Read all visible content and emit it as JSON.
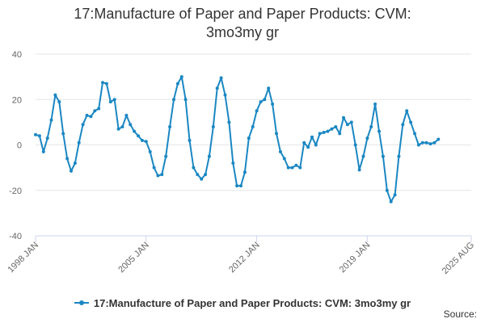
{
  "title_line1": "17:Manufacture of Paper and Paper Products: CVM:",
  "title_line2": "3mo3my gr",
  "source_label": "Source:",
  "colors": {
    "series": "#1a87c2",
    "grid": "#e6e6e6",
    "axis": "#ccd6eb",
    "text": "#666666"
  },
  "chart_data": {
    "type": "line",
    "title": "17:Manufacture of Paper and Paper Products: CVM: 3mo3my gr",
    "xlabel": "",
    "ylabel": "",
    "ylim": [
      -40,
      40
    ],
    "yticks": [
      -40,
      -20,
      0,
      20,
      40
    ],
    "xlim": [
      "1998-01",
      "2025-08"
    ],
    "xticks": [
      {
        "label": "1998 JAN",
        "date": "1998-01"
      },
      {
        "label": "2005 JAN",
        "date": "2005-01"
      },
      {
        "label": "2012 JAN",
        "date": "2012-01"
      },
      {
        "label": "2019 JAN",
        "date": "2019-01"
      },
      {
        "label": "2025 AUG",
        "date": "2025-08"
      }
    ],
    "grid": true,
    "legend": "bottom-center",
    "series": [
      {
        "name": "17:Manufacture of Paper and Paper Products: CVM: 3mo3my gr",
        "points": [
          [
            "1998-01",
            4.5
          ],
          [
            "1998-04",
            4.0
          ],
          [
            "1998-07",
            -3.0
          ],
          [
            "1998-10",
            3.0
          ],
          [
            "1999-01",
            11.0
          ],
          [
            "1999-04",
            22.0
          ],
          [
            "1999-07",
            19.0
          ],
          [
            "1999-10",
            5.0
          ],
          [
            "2000-01",
            -6.0
          ],
          [
            "2000-04",
            -11.5
          ],
          [
            "2000-07",
            -8.0
          ],
          [
            "2000-10",
            1.0
          ],
          [
            "2001-01",
            9.0
          ],
          [
            "2001-04",
            13.0
          ],
          [
            "2001-07",
            12.5
          ],
          [
            "2001-10",
            15.0
          ],
          [
            "2002-01",
            16.0
          ],
          [
            "2002-04",
            27.5
          ],
          [
            "2002-07",
            27.0
          ],
          [
            "2002-10",
            19.0
          ],
          [
            "2003-01",
            20.0
          ],
          [
            "2003-04",
            7.0
          ],
          [
            "2003-07",
            8.0
          ],
          [
            "2003-10",
            13.0
          ],
          [
            "2004-01",
            9.0
          ],
          [
            "2004-04",
            6.0
          ],
          [
            "2004-07",
            4.0
          ],
          [
            "2004-10",
            2.0
          ],
          [
            "2005-01",
            1.5
          ],
          [
            "2005-04",
            -3.0
          ],
          [
            "2005-07",
            -10.0
          ],
          [
            "2005-10",
            -13.5
          ],
          [
            "2006-01",
            -13.0
          ],
          [
            "2006-04",
            -5.0
          ],
          [
            "2006-07",
            8.0
          ],
          [
            "2006-10",
            20.0
          ],
          [
            "2007-01",
            27.0
          ],
          [
            "2007-04",
            30.0
          ],
          [
            "2007-07",
            20.0
          ],
          [
            "2007-10",
            2.0
          ],
          [
            "2008-01",
            -10.0
          ],
          [
            "2008-04",
            -13.0
          ],
          [
            "2008-07",
            -15.0
          ],
          [
            "2008-10",
            -13.0
          ],
          [
            "2009-01",
            -5.0
          ],
          [
            "2009-04",
            8.0
          ],
          [
            "2009-07",
            25.0
          ],
          [
            "2009-10",
            29.5
          ],
          [
            "2010-01",
            22.0
          ],
          [
            "2010-04",
            10.0
          ],
          [
            "2010-07",
            -8.0
          ],
          [
            "2010-10",
            -18.0
          ],
          [
            "2011-01",
            -18.0
          ],
          [
            "2011-04",
            -12.0
          ],
          [
            "2011-07",
            3.0
          ],
          [
            "2011-10",
            8.0
          ],
          [
            "2012-01",
            15.0
          ],
          [
            "2012-04",
            19.0
          ],
          [
            "2012-07",
            20.0
          ],
          [
            "2012-10",
            25.0
          ],
          [
            "2013-01",
            18.0
          ],
          [
            "2013-04",
            5.0
          ],
          [
            "2013-07",
            -3.0
          ],
          [
            "2013-10",
            -6.0
          ],
          [
            "2014-01",
            -10.0
          ],
          [
            "2014-04",
            -10.0
          ],
          [
            "2014-07",
            -9.0
          ],
          [
            "2014-10",
            -10.0
          ],
          [
            "2015-01",
            1.0
          ],
          [
            "2015-04",
            -1.0
          ],
          [
            "2015-07",
            3.5
          ],
          [
            "2015-10",
            0.0
          ],
          [
            "2016-01",
            5.0
          ],
          [
            "2016-04",
            5.5
          ],
          [
            "2016-07",
            6.0
          ],
          [
            "2016-10",
            7.0
          ],
          [
            "2017-01",
            8.0
          ],
          [
            "2017-04",
            5.0
          ],
          [
            "2017-07",
            12.0
          ],
          [
            "2017-10",
            9.0
          ],
          [
            "2018-01",
            10.0
          ],
          [
            "2018-04",
            0.0
          ],
          [
            "2018-07",
            -11.0
          ],
          [
            "2018-10",
            -5.0
          ],
          [
            "2019-01",
            3.0
          ],
          [
            "2019-04",
            8.0
          ],
          [
            "2019-07",
            18.0
          ],
          [
            "2019-10",
            6.0
          ],
          [
            "2020-01",
            -5.0
          ],
          [
            "2020-04",
            -20.0
          ],
          [
            "2020-07",
            -25.0
          ],
          [
            "2020-10",
            -22.0
          ],
          [
            "2021-01",
            -5.0
          ],
          [
            "2021-04",
            9.0
          ],
          [
            "2021-07",
            15.0
          ],
          [
            "2021-10",
            10.0
          ],
          [
            "2022-01",
            5.0
          ],
          [
            "2022-04",
            0.0
          ],
          [
            "2022-07",
            1.0
          ],
          [
            "2022-10",
            1.0
          ],
          [
            "2023-01",
            0.5
          ],
          [
            "2023-04",
            1.0
          ],
          [
            "2023-07",
            2.5
          ]
        ]
      }
    ]
  }
}
